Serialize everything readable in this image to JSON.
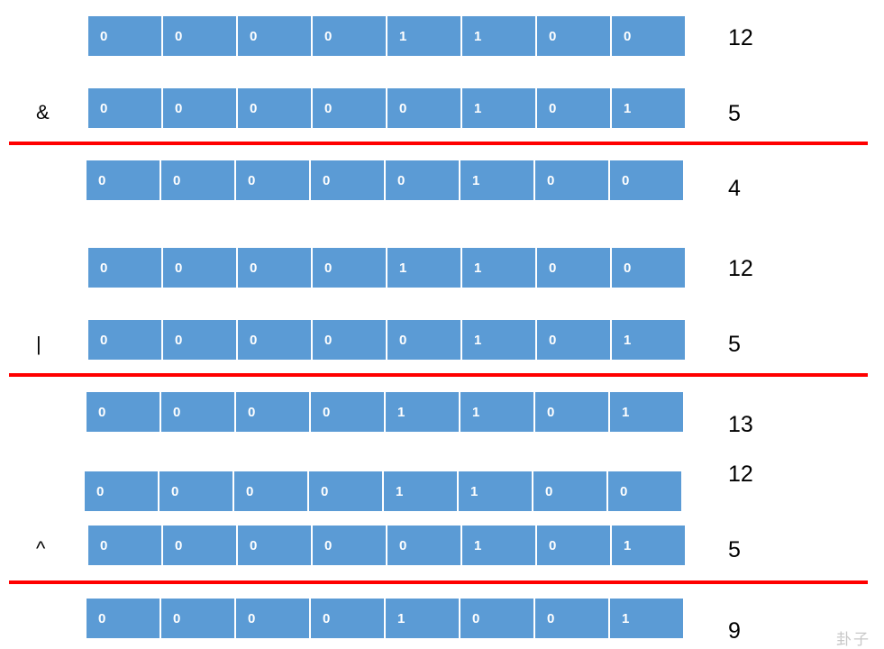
{
  "groups": [
    {
      "operator": "&",
      "a": {
        "bits": [
          "0",
          "0",
          "0",
          "0",
          "1",
          "1",
          "0",
          "0"
        ],
        "value": "12"
      },
      "b": {
        "bits": [
          "0",
          "0",
          "0",
          "0",
          "0",
          "1",
          "0",
          "1"
        ],
        "value": "5"
      },
      "result": {
        "bits": [
          "0",
          "0",
          "0",
          "0",
          "0",
          "1",
          "0",
          "0"
        ],
        "value": "4"
      }
    },
    {
      "operator": "|",
      "a": {
        "bits": [
          "0",
          "0",
          "0",
          "0",
          "1",
          "1",
          "0",
          "0"
        ],
        "value": "12"
      },
      "b": {
        "bits": [
          "0",
          "0",
          "0",
          "0",
          "0",
          "1",
          "0",
          "1"
        ],
        "value": "5"
      },
      "result": {
        "bits": [
          "0",
          "0",
          "0",
          "0",
          "1",
          "1",
          "0",
          "1"
        ],
        "value": "13"
      }
    },
    {
      "operator": "^",
      "a": {
        "bits": [
          "0",
          "0",
          "0",
          "0",
          "1",
          "1",
          "0",
          "0"
        ],
        "value": "12"
      },
      "b": {
        "bits": [
          "0",
          "0",
          "0",
          "0",
          "0",
          "1",
          "0",
          "1"
        ],
        "value": "5"
      },
      "result": {
        "bits": [
          "0",
          "0",
          "0",
          "0",
          "1",
          "0",
          "0",
          "1"
        ],
        "value": "9"
      }
    }
  ],
  "colors": {
    "cell": "#5b9bd5",
    "cell_text": "#ffffff",
    "divider": "#ff0000"
  },
  "watermark": "卦子"
}
